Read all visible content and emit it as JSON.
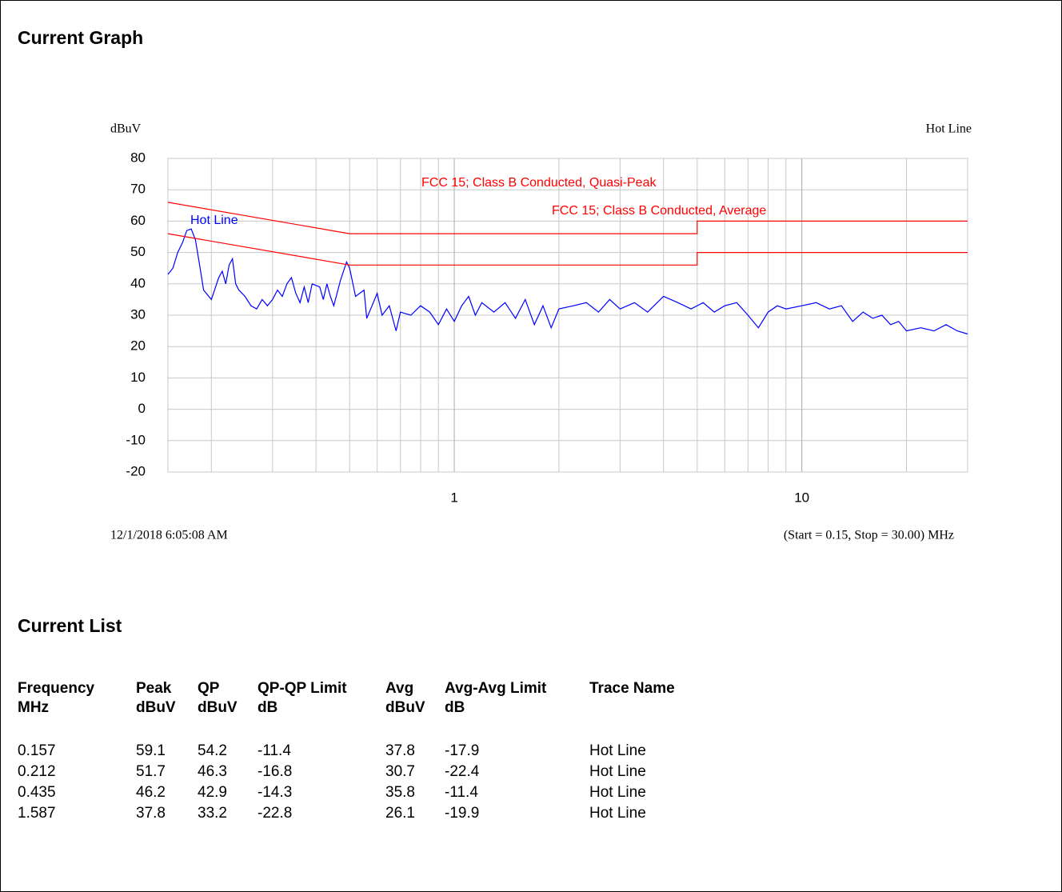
{
  "header": {
    "title": "Current Graph"
  },
  "chart_data": {
    "type": "line",
    "y_label": "dBuV",
    "trace_title": "Hot Line",
    "x_scale": "log",
    "x_minor_grid": true,
    "grid": true,
    "xlim": [
      0.15,
      30
    ],
    "xticks": [
      1,
      10
    ],
    "ylim": [
      -20,
      80
    ],
    "yticks": [
      -20,
      -10,
      0,
      10,
      20,
      30,
      40,
      50,
      60,
      70,
      80
    ],
    "series": [
      {
        "name": "Hot Line",
        "color": "#0000ff",
        "x": [
          0.15,
          0.155,
          0.16,
          0.165,
          0.17,
          0.175,
          0.18,
          0.185,
          0.19,
          0.2,
          0.21,
          0.215,
          0.22,
          0.225,
          0.23,
          0.235,
          0.24,
          0.25,
          0.26,
          0.27,
          0.28,
          0.29,
          0.3,
          0.31,
          0.32,
          0.33,
          0.34,
          0.35,
          0.36,
          0.37,
          0.38,
          0.39,
          0.41,
          0.42,
          0.43,
          0.44,
          0.45,
          0.47,
          0.49,
          0.5,
          0.52,
          0.55,
          0.56,
          0.58,
          0.6,
          0.62,
          0.65,
          0.68,
          0.7,
          0.75,
          0.8,
          0.85,
          0.9,
          0.95,
          1.0,
          1.05,
          1.1,
          1.15,
          1.2,
          1.3,
          1.4,
          1.5,
          1.6,
          1.7,
          1.8,
          1.9,
          2.0,
          2.2,
          2.4,
          2.6,
          2.8,
          3.0,
          3.3,
          3.6,
          4.0,
          4.4,
          4.8,
          5.2,
          5.6,
          6.0,
          6.5,
          7.0,
          7.5,
          8.0,
          8.5,
          9.0,
          10,
          11,
          12,
          13,
          14,
          15,
          16,
          17,
          18,
          19,
          20,
          22,
          24,
          26,
          28,
          30
        ],
        "values": [
          43,
          45,
          50,
          53,
          57,
          57.5,
          54,
          46,
          38,
          35,
          42,
          44,
          40,
          46,
          48,
          40,
          38,
          36,
          33,
          32,
          35,
          33,
          35,
          38,
          36,
          40,
          42,
          37,
          34,
          39,
          34,
          40,
          39,
          35,
          40,
          36,
          33,
          41,
          47,
          45,
          36,
          38,
          29,
          33,
          37,
          30,
          33,
          25,
          31,
          30,
          33,
          31,
          27,
          32,
          28,
          33,
          36,
          30,
          34,
          31,
          34,
          29,
          35,
          27,
          33,
          26,
          32,
          33,
          34,
          31,
          35,
          32,
          34,
          31,
          36,
          34,
          32,
          34,
          31,
          33,
          34,
          30,
          26,
          31,
          33,
          32,
          33,
          34,
          32,
          33,
          28,
          31,
          29,
          30,
          27,
          28,
          25,
          26,
          25,
          27,
          25,
          24
        ]
      },
      {
        "name": "FCC 15; Class B Conducted, Quasi-Peak",
        "color": "#ff0000",
        "x": [
          0.15,
          0.5,
          5,
          5,
          30
        ],
        "values": [
          66,
          56,
          56,
          60,
          60
        ]
      },
      {
        "name": "FCC 15; Class B Conducted, Average",
        "color": "#ff0000",
        "x": [
          0.15,
          0.5,
          5,
          5,
          30
        ],
        "values": [
          56,
          46,
          46,
          50,
          50
        ]
      }
    ],
    "timestamp": "12/1/2018 6:05:08 AM",
    "range_note": "(Start = 0.15, Stop = 30.00) MHz"
  },
  "list": {
    "title": "Current List",
    "columns": [
      {
        "name": "Frequency",
        "unit": "MHz"
      },
      {
        "name": "Peak",
        "unit": "dBuV"
      },
      {
        "name": "QP",
        "unit": "dBuV"
      },
      {
        "name": "QP-QP Limit",
        "unit": "dB"
      },
      {
        "name": "Avg",
        "unit": "dBuV"
      },
      {
        "name": "Avg-Avg Limit",
        "unit": "dB"
      },
      {
        "name": "Trace Name"
      }
    ],
    "rows": [
      [
        0.157,
        59.1,
        54.2,
        -11.4,
        37.8,
        -17.9,
        "Hot Line"
      ],
      [
        0.212,
        51.7,
        46.3,
        -16.8,
        30.7,
        -22.4,
        "Hot Line"
      ],
      [
        0.435,
        46.2,
        42.9,
        -14.3,
        35.8,
        -11.4,
        "Hot Line"
      ],
      [
        1.587,
        37.8,
        33.2,
        -22.8,
        26.1,
        -19.9,
        "Hot Line"
      ]
    ]
  }
}
